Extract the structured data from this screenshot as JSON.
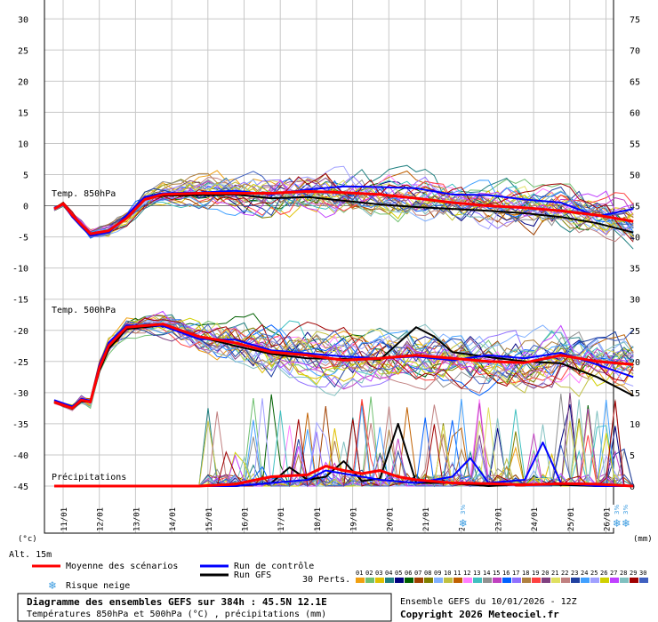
{
  "chart_data": {
    "type": "line",
    "title": "Diagramme des ensembles GEFS sur 384h : 45.5N 12.1E",
    "subtitle": "Températures 850hPa et 500hPa (°C) , précipitations (mm)",
    "run_label": "Ensemble GEFS du 10/01/2026 - 12Z",
    "copyright": "Copyright 2026 Meteociel.fr",
    "altitude": "Alt. 15m",
    "left_unit": "(°c)",
    "right_unit": "(mm)",
    "left_ticks": [
      "30",
      "25",
      "20",
      "15",
      "10",
      "5",
      "0",
      "-5",
      "-10",
      "-15",
      "-20",
      "-25",
      "-30",
      "-35",
      "-40",
      "-45"
    ],
    "right_ticks": [
      "75",
      "70",
      "65",
      "60",
      "55",
      "50",
      "45",
      "40",
      "35",
      "30",
      "25",
      "20",
      "15",
      "10",
      "5",
      "0"
    ],
    "ylim_temp": [
      -45,
      30
    ],
    "ylim_precip": [
      0,
      75
    ],
    "x_labels": [
      "11/01",
      "12/01",
      "13/01",
      "14/01",
      "15/01",
      "16/01",
      "17/01",
      "18/01",
      "19/01",
      "20/01",
      "21/01",
      "22/01",
      "23/01",
      "24/01",
      "25/01",
      "26/01"
    ],
    "panel_labels": {
      "t850": "Temp. 850hPa",
      "t500": "Temp. 500hPa",
      "precip": "Précipitations"
    },
    "snow_marks": [
      {
        "date_index": 11.3,
        "label": "3%"
      },
      {
        "date_index": 15.55,
        "label": "3%"
      },
      {
        "date_index": 15.8,
        "label": "3%"
      }
    ],
    "series": [
      {
        "name": "Moyenne des scénarios",
        "t850": [
          [
            0,
            -0.5
          ],
          [
            0.25,
            0.3
          ],
          [
            0.5,
            -1.5
          ],
          [
            1,
            -4.5
          ],
          [
            1.5,
            -4
          ],
          [
            2,
            -2
          ],
          [
            2.5,
            1
          ],
          [
            3,
            1.8
          ],
          [
            4,
            2
          ],
          [
            5,
            2
          ],
          [
            6,
            2
          ],
          [
            7,
            2.3
          ],
          [
            8,
            2.1
          ],
          [
            9,
            1.8
          ],
          [
            10,
            1.2
          ],
          [
            11,
            0.5
          ],
          [
            12,
            0
          ],
          [
            13,
            -0.3
          ],
          [
            14,
            -0.8
          ],
          [
            15,
            -1.5
          ],
          [
            16,
            -2.5
          ]
        ],
        "t500": [
          [
            0,
            -31.5
          ],
          [
            0.5,
            -32.5
          ],
          [
            0.75,
            -31.2
          ],
          [
            1,
            -31.5
          ],
          [
            1.25,
            -26
          ],
          [
            1.5,
            -22.5
          ],
          [
            2,
            -19.5
          ],
          [
            3,
            -19
          ],
          [
            4,
            -21
          ],
          [
            5,
            -22
          ],
          [
            6,
            -23.5
          ],
          [
            7,
            -24
          ],
          [
            8,
            -24.8
          ],
          [
            9,
            -24.5
          ],
          [
            10,
            -24
          ],
          [
            11,
            -24.5
          ],
          [
            12,
            -25
          ],
          [
            13,
            -25.2
          ],
          [
            14,
            -24
          ],
          [
            15,
            -25
          ],
          [
            16,
            -25.5
          ]
        ],
        "precip": [
          [
            0,
            0
          ],
          [
            4,
            0
          ],
          [
            5,
            0.3
          ],
          [
            6,
            1.5
          ],
          [
            7,
            1.8
          ],
          [
            7.5,
            3.2
          ],
          [
            8,
            2.5
          ],
          [
            8.5,
            2
          ],
          [
            9,
            2.5
          ],
          [
            9.5,
            1.5
          ],
          [
            10,
            1
          ],
          [
            11,
            0.5
          ],
          [
            12,
            0.4
          ],
          [
            13,
            0.2
          ],
          [
            14,
            0.4
          ],
          [
            15,
            0.3
          ],
          [
            16,
            0
          ]
        ]
      },
      {
        "name": "Run de contrôle",
        "t850": [
          [
            0,
            -0.3
          ],
          [
            0.25,
            0.2
          ],
          [
            0.5,
            -1.8
          ],
          [
            1,
            -4.8
          ],
          [
            1.5,
            -4.3
          ],
          [
            2,
            -1.5
          ],
          [
            2.5,
            1.4
          ],
          [
            3,
            2
          ],
          [
            4,
            2.1
          ],
          [
            5,
            2.4
          ],
          [
            6,
            1.8
          ],
          [
            7,
            2.6
          ],
          [
            8,
            3.1
          ],
          [
            9,
            3
          ],
          [
            10,
            2.8
          ],
          [
            11,
            1.8
          ],
          [
            12,
            1.7
          ],
          [
            13,
            1
          ],
          [
            14,
            0.5
          ],
          [
            15,
            -1.7
          ],
          [
            16,
            -0.5
          ]
        ],
        "t500": [
          [
            0,
            -31.2
          ],
          [
            0.5,
            -32.2
          ],
          [
            0.75,
            -31
          ],
          [
            1,
            -31.3
          ],
          [
            1.25,
            -25.5
          ],
          [
            1.5,
            -22
          ],
          [
            2,
            -19.2
          ],
          [
            3,
            -19.3
          ],
          [
            4,
            -21.4
          ],
          [
            5,
            -21.5
          ],
          [
            6,
            -23.2
          ],
          [
            7,
            -23.7
          ],
          [
            8,
            -24.2
          ],
          [
            9,
            -24.5
          ],
          [
            10,
            -24.2
          ],
          [
            11,
            -24.8
          ],
          [
            12,
            -24
          ],
          [
            13,
            -24.5
          ],
          [
            14,
            -23.6
          ],
          [
            15,
            -25.5
          ],
          [
            16,
            -27.5
          ]
        ],
        "precip": [
          [
            0,
            0
          ],
          [
            5,
            0
          ],
          [
            6,
            0.5
          ],
          [
            7,
            1
          ],
          [
            7.5,
            2.5
          ],
          [
            8,
            2
          ],
          [
            9,
            1
          ],
          [
            10,
            0.5
          ],
          [
            11,
            1.5
          ],
          [
            11.5,
            4.5
          ],
          [
            12,
            0.5
          ],
          [
            13,
            1
          ],
          [
            13.5,
            7
          ],
          [
            14,
            0.5
          ],
          [
            15,
            0
          ],
          [
            16,
            0
          ]
        ]
      },
      {
        "name": "Run GFS",
        "t850": [
          [
            0,
            -0.4
          ],
          [
            0.25,
            0.4
          ],
          [
            0.5,
            -1.6
          ],
          [
            1,
            -4.6
          ],
          [
            1.5,
            -4.1
          ],
          [
            2,
            -1.8
          ],
          [
            2.5,
            1.1
          ],
          [
            3,
            1.6
          ],
          [
            4,
            1.7
          ],
          [
            5,
            1.8
          ],
          [
            6,
            1.2
          ],
          [
            7,
            1.4
          ],
          [
            8,
            0.8
          ],
          [
            9,
            0.2
          ],
          [
            10,
            -0.2
          ],
          [
            11,
            -0.5
          ],
          [
            12,
            -0.8
          ],
          [
            13,
            -1.2
          ],
          [
            14,
            -1.8
          ],
          [
            15,
            -2.8
          ],
          [
            16,
            -4.3
          ]
        ],
        "t500": [
          [
            0,
            -31.5
          ],
          [
            0.5,
            -32.6
          ],
          [
            0.75,
            -31.4
          ],
          [
            1,
            -31.5
          ],
          [
            1.25,
            -26.5
          ],
          [
            1.5,
            -23
          ],
          [
            2,
            -19.8
          ],
          [
            3,
            -19.2
          ],
          [
            4,
            -21
          ],
          [
            5,
            -22.5
          ],
          [
            6,
            -23.8
          ],
          [
            7,
            -24.5
          ],
          [
            8,
            -24.6
          ],
          [
            9,
            -24.7
          ],
          [
            10,
            -19.5
          ],
          [
            10.5,
            -21
          ],
          [
            11,
            -23.5
          ],
          [
            12,
            -24.3
          ],
          [
            13,
            -25
          ],
          [
            14,
            -25.3
          ],
          [
            15,
            -27.5
          ],
          [
            16,
            -30.5
          ]
        ],
        "precip": [
          [
            0,
            0
          ],
          [
            5,
            0
          ],
          [
            6,
            0.5
          ],
          [
            6.5,
            3
          ],
          [
            7,
            1
          ],
          [
            7.5,
            1.5
          ],
          [
            8,
            4
          ],
          [
            8.5,
            0.8
          ],
          [
            9,
            1.2
          ],
          [
            9.5,
            10
          ],
          [
            10,
            0.5
          ],
          [
            11,
            0.5
          ],
          [
            12,
            0
          ],
          [
            13,
            0.3
          ],
          [
            14,
            0.2
          ],
          [
            15,
            0
          ],
          [
            16,
            0
          ]
        ]
      }
    ],
    "member_count": 30
  },
  "legend": {
    "mean": "Moyenne des scénarios",
    "control": "Run de contrôle",
    "gfs": "Run GFS",
    "snow": "Risque neige",
    "perts_label": "30 Perts.",
    "perts": [
      "01",
      "02",
      "03",
      "04",
      "05",
      "06",
      "07",
      "08",
      "09",
      "10",
      "11",
      "12",
      "13",
      "14",
      "15",
      "16",
      "17",
      "18",
      "19",
      "20",
      "21",
      "22",
      "23",
      "24",
      "25",
      "26",
      "27",
      "28",
      "29",
      "30"
    ]
  },
  "colors": {
    "mean": "#ff0000",
    "control": "#0000ff",
    "gfs": "#000000",
    "grid": "#c8c8c8",
    "members": [
      "#f0a010",
      "#70c070",
      "#e0c000",
      "#208080",
      "#000080",
      "#006000",
      "#a04000",
      "#808000",
      "#80b0ff",
      "#c0c040",
      "#c06000",
      "#ff80ff",
      "#40c0c0",
      "#909090",
      "#c040c0",
      "#0060ff",
      "#9070ff",
      "#b08040",
      "#ff4040",
      "#804080",
      "#e0e060",
      "#c08080",
      "#2040a0",
      "#40a0ff",
      "#a0a0ff",
      "#d0d000",
      "#c040ff",
      "#80c0c0",
      "#a00000",
      "#4060c0"
    ]
  }
}
